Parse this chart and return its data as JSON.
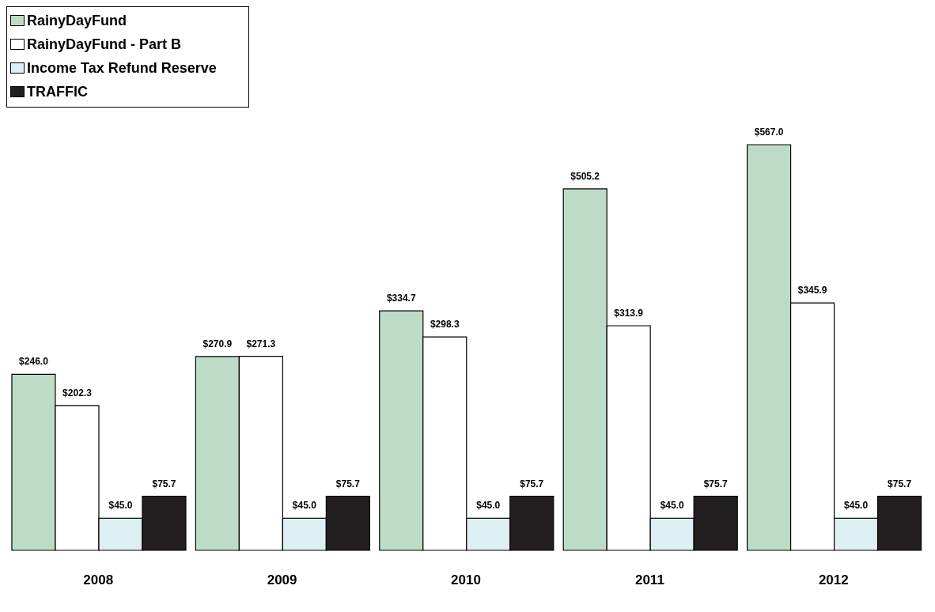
{
  "chart_data": {
    "type": "bar",
    "categories": [
      "2008",
      "2009",
      "2010",
      "2011",
      "2012"
    ],
    "series": [
      {
        "name": "RainyDayFund",
        "color": "#bddcc8",
        "values": [
          246.0,
          270.9,
          334.7,
          505.2,
          567.0
        ],
        "value_labels": [
          "$246.0",
          "$270.9",
          "$334.7",
          "$505.2",
          "$567.0"
        ]
      },
      {
        "name": "RainyDayFund - Part B",
        "color": "#ffffff",
        "values": [
          202.3,
          271.3,
          298.3,
          313.9,
          345.9
        ],
        "value_labels": [
          "$202.3",
          "$271.3",
          "$298.3",
          "$313.9",
          "$345.9"
        ]
      },
      {
        "name": "Income Tax Refund Reserve",
        "color": "#dcf0f4",
        "values": [
          45.0,
          45.0,
          45.0,
          45.0,
          45.0
        ],
        "value_labels": [
          "$45.0",
          "$45.0",
          "$45.0",
          "$45.0",
          "$45.0"
        ]
      },
      {
        "name": "TRAFFIC",
        "color": "#231f20",
        "values": [
          75.7,
          75.7,
          75.7,
          75.7,
          75.7
        ],
        "value_labels": [
          "$75.7",
          "$75.7",
          "$75.7",
          "$75.7",
          "$75.7"
        ]
      }
    ],
    "legend": "top left"
  }
}
